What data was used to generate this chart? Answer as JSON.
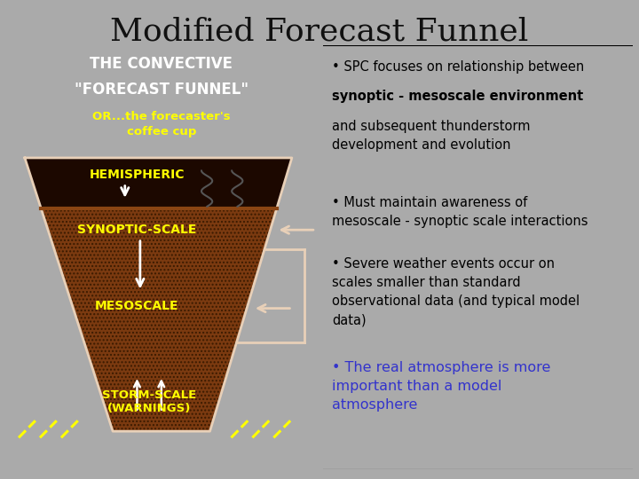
{
  "title": "Modified Forecast Funnel",
  "title_fontsize": 26,
  "bg_color": "#aaaaaa",
  "left_panel_bg": "#000000",
  "right_panel_bg": "#b8b8b8",
  "left_title_line1": "THE CONVECTIVE",
  "left_title_line2": "\"FORECAST FUNNEL\"",
  "left_subtitle": "OR...the forecaster's\ncoffee cup",
  "labels": [
    "HEMISPHERIC",
    "SYNOPTIC-SCALE",
    "MESOSCALE",
    "STORM-SCALE\n(WARNINGS)"
  ],
  "label_color": "#ffff00",
  "bullet1a": "• SPC focuses on relationship between",
  "bullet1b": "synoptic - mesoscale environment",
  "bullet1c": "and subsequent thunderstorm\ndevelopment and evolution",
  "bullet2": "• Must maintain awareness of\nmesoscale - synoptic scale interactions",
  "bullet3": "• Severe weather events occur on\nscales smaller than standard\nobservational data (and typical model\ndata)",
  "bullet4": "• The real atmosphere is more\nimportant than a model\natmosphere",
  "bullet4_color": "#3333cc",
  "funnel_brown": "#7B3A10",
  "funnel_dark": "#1c0800",
  "funnel_outline": "#e8d0b8",
  "arrow_color": "#e8d0b8",
  "steam_color": "#555555",
  "dashed_color": "#ffff00"
}
